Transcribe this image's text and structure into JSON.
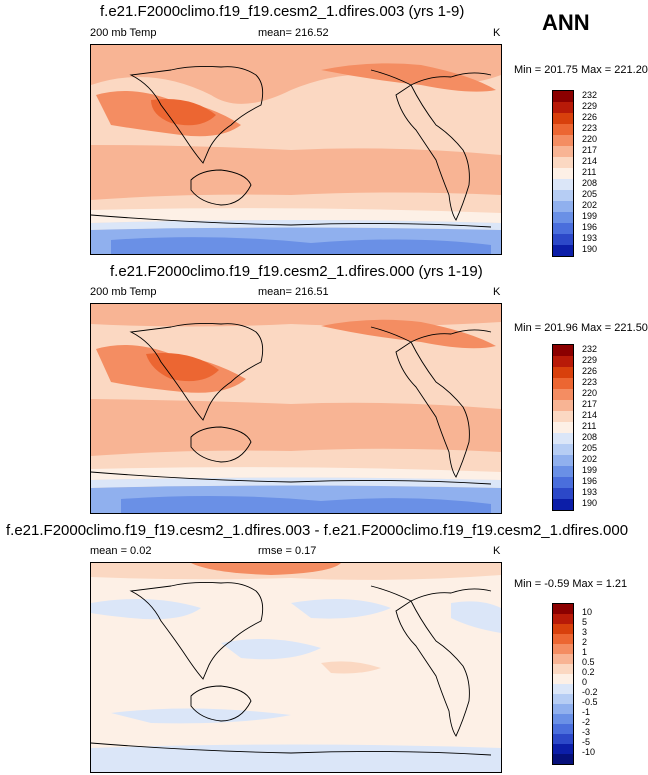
{
  "season": "ANN",
  "panels": [
    {
      "title": "f.e21.F2000climo.f19_f19.cesm2_1.dfires.003 (yrs 1-9)",
      "variable": "200 mb Temp",
      "stat": "mean= 216.52",
      "rmse": "",
      "units": "K",
      "minmax": "Min = 201.75 Max = 221.20",
      "colorbar_labels": [
        "232",
        "229",
        "226",
        "223",
        "220",
        "217",
        "214",
        "211",
        "208",
        "205",
        "202",
        "199",
        "196",
        "193",
        "190"
      ],
      "colorbar_colors": [
        "#8b0000",
        "#b81a08",
        "#d8400c",
        "#ec6632",
        "#f48d62",
        "#f8b494",
        "#fbd8c2",
        "#fdf0e6",
        "#dbe6f8",
        "#b6cdf4",
        "#90b0ee",
        "#6a90e6",
        "#4a6edc",
        "#2c48c8",
        "#0c1ea8"
      ]
    },
    {
      "title": "f.e21.F2000climo.f19_f19.cesm2_1.dfires.000 (yrs 1-19)",
      "variable": "200 mb Temp",
      "stat": "mean= 216.51",
      "rmse": "",
      "units": "K",
      "minmax": "Min = 201.96 Max = 221.50",
      "colorbar_labels": [
        "232",
        "229",
        "226",
        "223",
        "220",
        "217",
        "214",
        "211",
        "208",
        "205",
        "202",
        "199",
        "196",
        "193",
        "190"
      ],
      "colorbar_colors": [
        "#8b0000",
        "#b81a08",
        "#d8400c",
        "#ec6632",
        "#f48d62",
        "#f8b494",
        "#fbd8c2",
        "#fdf0e6",
        "#dbe6f8",
        "#b6cdf4",
        "#90b0ee",
        "#6a90e6",
        "#4a6edc",
        "#2c48c8",
        "#0c1ea8"
      ]
    },
    {
      "title": "f.e21.F2000climo.f19_f19.cesm2_1.dfires.003 - f.e21.F2000climo.f19_f19.cesm2_1.dfires.000",
      "variable": "",
      "stat": "mean =   0.02",
      "rmse": "rmse =   0.17",
      "units": "K",
      "minmax": "Min =  -0.59 Max =  1.21",
      "colorbar_labels": [
        "10",
        "5",
        "3",
        "2",
        "1",
        "0.5",
        "0.2",
        "0",
        "-0.2",
        "-0.5",
        "-1",
        "-2",
        "-3",
        "-5",
        "-10"
      ],
      "colorbar_colors": [
        "#8b0000",
        "#b81a08",
        "#d8400c",
        "#ec6632",
        "#f48d62",
        "#f8b494",
        "#fbd8c2",
        "#fdf0e6",
        "#dbe6f8",
        "#b6cdf4",
        "#90b0ee",
        "#6a90e6",
        "#4a6edc",
        "#2c48c8",
        "#0c1ea8",
        "#06107a"
      ]
    }
  ],
  "chart_data": [
    {
      "type": "heatmap",
      "title": "f.e21.F2000climo.f19_f19.cesm2_1.dfires.003 (yrs 1-9)",
      "variable": "200 mb Temp",
      "units": "K",
      "mean": 216.52,
      "min": 201.75,
      "max": 221.2,
      "contour_levels": [
        190,
        193,
        196,
        199,
        202,
        205,
        208,
        211,
        214,
        217,
        220,
        223,
        226,
        229,
        232
      ]
    },
    {
      "type": "heatmap",
      "title": "f.e21.F2000climo.f19_f19.cesm2_1.dfires.000 (yrs 1-19)",
      "variable": "200 mb Temp",
      "units": "K",
      "mean": 216.51,
      "min": 201.96,
      "max": 221.5,
      "contour_levels": [
        190,
        193,
        196,
        199,
        202,
        205,
        208,
        211,
        214,
        217,
        220,
        223,
        226,
        229,
        232
      ]
    },
    {
      "type": "heatmap",
      "title": "f.e21.F2000climo.f19_f19.cesm2_1.dfires.003 - f.e21.F2000climo.f19_f19.cesm2_1.dfires.000",
      "units": "K",
      "mean": 0.02,
      "rmse": 0.17,
      "min": -0.59,
      "max": 1.21,
      "contour_levels": [
        -10,
        -5,
        -3,
        -2,
        -1,
        -0.5,
        -0.2,
        0,
        0.2,
        0.5,
        1,
        2,
        3,
        5,
        10
      ]
    }
  ]
}
